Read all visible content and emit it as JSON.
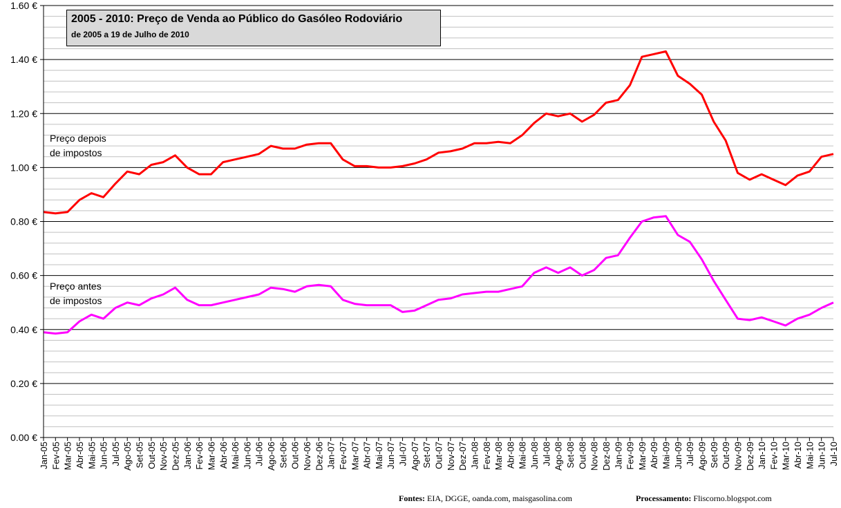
{
  "chart_data": {
    "type": "line",
    "title": "2005 - 2010: Preço de Venda ao Público do Gasóleo Rodoviário",
    "subtitle": "de 2005 a 19 de Julho de 2010",
    "xlabel": "",
    "ylabel": "",
    "ylim": [
      0,
      1.6
    ],
    "y_ticks": [
      "0.00 €",
      "0.20 €",
      "0.40 €",
      "0.60 €",
      "0.80 €",
      "1.00 €",
      "1.20 €",
      "1.40 €",
      "1.60 €"
    ],
    "y_tick_values": [
      0,
      0.2,
      0.4,
      0.6,
      0.8,
      1.0,
      1.2,
      1.4,
      1.6
    ],
    "grid": true,
    "categories": [
      "Jan-05",
      "Fev-05",
      "Mar-05",
      "Abr-05",
      "Mai-05",
      "Jun-05",
      "Jul-05",
      "Ago-05",
      "Set-05",
      "Out-05",
      "Nov-05",
      "Dez-05",
      "Jan-06",
      "Fev-06",
      "Mar-06",
      "Abr-06",
      "Mai-06",
      "Jun-06",
      "Jul-06",
      "Ago-06",
      "Set-06",
      "Out-06",
      "Nov-06",
      "Dez-06",
      "Jan-07",
      "Fev-07",
      "Mar-07",
      "Abr-07",
      "Mai-07",
      "Jun-07",
      "Jul-07",
      "Ago-07",
      "Set-07",
      "Out-07",
      "Nov-07",
      "Dez-07",
      "Jan-08",
      "Fev-08",
      "Mar-08",
      "Abr-08",
      "Mai-08",
      "Jun-08",
      "Jul-08",
      "Ago-08",
      "Set-08",
      "Out-08",
      "Nov-08",
      "Dez-08",
      "Jan-09",
      "Fev-09",
      "Mar-09",
      "Abr-09",
      "Mai-09",
      "Jun-09",
      "Jul-09",
      "Ago-09",
      "Set-09",
      "Out-09",
      "Nov-09",
      "Dez-09",
      "Jan-10",
      "Fev-10",
      "Mar-10",
      "Abr-10",
      "Mai-10",
      "Jun-10",
      "Jul-10"
    ],
    "series": [
      {
        "name": "Preço depois de impostos",
        "color": "#ff0000",
        "values": [
          0.835,
          0.83,
          0.835,
          0.88,
          0.905,
          0.89,
          0.94,
          0.985,
          0.975,
          1.01,
          1.02,
          1.045,
          1.0,
          0.975,
          0.975,
          1.02,
          1.03,
          1.04,
          1.05,
          1.08,
          1.07,
          1.07,
          1.085,
          1.09,
          1.09,
          1.03,
          1.005,
          1.005,
          1.0,
          1.0,
          1.005,
          1.015,
          1.03,
          1.055,
          1.06,
          1.07,
          1.09,
          1.09,
          1.095,
          1.09,
          1.12,
          1.165,
          1.2,
          1.19,
          1.2,
          1.17,
          1.195,
          1.24,
          1.25,
          1.305,
          1.41,
          1.42,
          1.43,
          1.34,
          1.31,
          1.27,
          1.17,
          1.1,
          0.98,
          0.955,
          0.975,
          0.955,
          0.935,
          0.97,
          0.985,
          1.04,
          1.05
        ]
      },
      {
        "name": "Preço antes de impostos",
        "color": "#ff00ff",
        "values": [
          0.39,
          0.385,
          0.39,
          0.43,
          0.455,
          0.44,
          0.48,
          0.5,
          0.49,
          0.515,
          0.53,
          0.555,
          0.51,
          0.49,
          0.49,
          0.5,
          0.51,
          0.52,
          0.53,
          0.555,
          0.55,
          0.54,
          0.56,
          0.565,
          0.56,
          0.51,
          0.495,
          0.49,
          0.49,
          0.49,
          0.465,
          0.47,
          0.49,
          0.51,
          0.515,
          0.53,
          0.535,
          0.54,
          0.54,
          0.55,
          0.56,
          0.61,
          0.63,
          0.61,
          0.63,
          0.6,
          0.62,
          0.665,
          0.675,
          0.74,
          0.8,
          0.815,
          0.82,
          0.75,
          0.725,
          0.66,
          0.58,
          0.51,
          0.44,
          0.435,
          0.445,
          0.43,
          0.415,
          0.44,
          0.455,
          0.48,
          0.5
        ]
      }
    ],
    "annotations": [
      {
        "line1": "Preço depois",
        "line2": "de impostos"
      },
      {
        "line1": "Preço antes",
        "line2": "de impostos"
      }
    ]
  },
  "footer": {
    "sources_label": "Fontes:",
    "sources_text": "EIA, DGGE, oanda.com, maisgasolina.com",
    "processing_label": "Processamento:",
    "processing_text": "Fliscorno.blogspot.com"
  }
}
